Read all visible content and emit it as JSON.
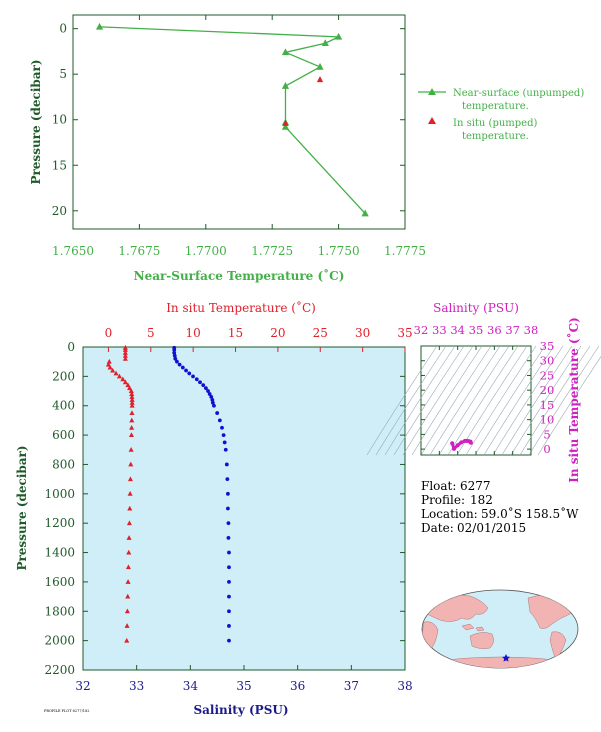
{
  "colors": {
    "green": "#43b047",
    "axis_green": "#1f5a2a",
    "red": "#e0202a",
    "blue": "#1010d0",
    "navy": "#1a1a8c",
    "magenta": "#d020c0",
    "panel_bg": "#cfeef8",
    "land": "#f2b3b3",
    "ocean": "#cfeef8"
  },
  "chart_data": [
    {
      "id": "near_surface",
      "type": "line",
      "xlabel": "Near-Surface Temperature (˚C)",
      "ylabel": "Pressure (decibar)",
      "xlim": [
        1.765,
        1.7775
      ],
      "ylim": [
        22,
        -1.5
      ],
      "x_ticks": [
        "1.7650",
        "1.7675",
        "1.7700",
        "1.7725",
        "1.7750",
        "1.7775"
      ],
      "y_ticks": [
        "0",
        "5",
        "10",
        "15",
        "20"
      ],
      "series": [
        {
          "name": "Near-surface (unpumped) temperature.",
          "marker": "triangle",
          "x": [
            1.766,
            1.775,
            1.7745,
            1.773,
            1.7743,
            1.773,
            1.773,
            1.773,
            1.776
          ],
          "y": [
            -0.2,
            0.9,
            1.6,
            2.6,
            4.2,
            6.3,
            10.3,
            10.8,
            20.3
          ]
        },
        {
          "name": "In situ (pumped) temperature.",
          "marker": "triangle",
          "x": [
            1.7743,
            1.773
          ],
          "y": [
            5.6,
            10.4
          ]
        }
      ],
      "legend": [
        {
          "line1": "Near-surface (unpumped)",
          "line2": "temperature."
        },
        {
          "line1": "In situ (pumped)",
          "line2": "temperature."
        }
      ]
    },
    {
      "id": "profile",
      "type": "scatter",
      "title": "In situ Temperature (˚C)",
      "xlabel": "Salinity (PSU)",
      "ylabel": "Pressure (decibar)",
      "temp_lim": [
        -3,
        35
      ],
      "salinity_lim": [
        32,
        38
      ],
      "pressure_lim": [
        0,
        2200
      ],
      "temp_ticks": [
        "0",
        "5",
        "10",
        "15",
        "20",
        "25",
        "30",
        "35"
      ],
      "salinity_ticks": [
        "32",
        "33",
        "34",
        "35",
        "36",
        "37",
        "38"
      ],
      "pressure_ticks": [
        "0",
        "200",
        "400",
        "600",
        "800",
        "1000",
        "1200",
        "1400",
        "1600",
        "1800",
        "2000",
        "2200"
      ],
      "series": [
        {
          "name": "temperature",
          "pressure": [
            5,
            20,
            40,
            60,
            80,
            100,
            120,
            140,
            160,
            180,
            200,
            220,
            240,
            260,
            280,
            300,
            320,
            340,
            360,
            380,
            400,
            450,
            500,
            550,
            600,
            700,
            800,
            900,
            1000,
            1100,
            1200,
            1300,
            1400,
            1500,
            1600,
            1700,
            1800,
            1900,
            2000
          ],
          "values": [
            2.0,
            2.0,
            2.0,
            2.0,
            2.0,
            0.1,
            0.0,
            0.2,
            0.5,
            0.9,
            1.3,
            1.7,
            2.0,
            2.3,
            2.5,
            2.7,
            2.75,
            2.78,
            2.8,
            2.8,
            2.8,
            2.78,
            2.76,
            2.74,
            2.72,
            2.68,
            2.64,
            2.6,
            2.56,
            2.52,
            2.48,
            2.44,
            2.4,
            2.36,
            2.32,
            2.28,
            2.24,
            2.2,
            2.16
          ]
        },
        {
          "name": "salinity",
          "pressure": [
            5,
            20,
            40,
            60,
            80,
            100,
            120,
            140,
            160,
            180,
            200,
            220,
            240,
            260,
            280,
            300,
            320,
            340,
            360,
            380,
            400,
            450,
            500,
            550,
            600,
            650,
            700,
            800,
            900,
            1000,
            1100,
            1200,
            1300,
            1400,
            1500,
            1600,
            1700,
            1800,
            1900,
            2000
          ],
          "values": [
            33.7,
            33.7,
            33.7,
            33.71,
            33.72,
            33.75,
            33.8,
            33.86,
            33.92,
            33.98,
            34.05,
            34.12,
            34.18,
            34.24,
            34.29,
            34.33,
            34.36,
            34.39,
            34.41,
            34.42,
            34.44,
            34.5,
            34.55,
            34.59,
            34.62,
            34.64,
            34.66,
            34.68,
            34.69,
            34.7,
            34.7,
            34.71,
            34.71,
            34.72,
            34.72,
            34.72,
            34.72,
            34.72,
            34.72,
            34.72
          ]
        }
      ]
    },
    {
      "id": "ts_diagram",
      "type": "scatter",
      "title": "Salinity (PSU)",
      "ylabel": "In situ Temperature (˚C)",
      "xlim": [
        32,
        38
      ],
      "ylim": [
        -2,
        35
      ],
      "x_ticks": [
        "32",
        "33",
        "34",
        "35",
        "36",
        "37",
        "38"
      ],
      "y_ticks": [
        "0",
        "5",
        "10",
        "15",
        "20",
        "25",
        "30",
        "35"
      ],
      "x": [
        33.7,
        33.8,
        34.0,
        34.2,
        34.4,
        34.5,
        34.6,
        34.7,
        34.72
      ],
      "y": [
        2.0,
        0.1,
        1.3,
        2.3,
        2.8,
        2.78,
        2.72,
        2.56,
        2.16
      ]
    }
  ],
  "info": {
    "float_label": "Float:",
    "float_value": "6277",
    "profile_label": "Profile:",
    "profile_value": "182",
    "location_label": "Location:",
    "location_value": "59.0˚S  158.5˚W",
    "date_label": "Date:",
    "date_value": "02/01/2015"
  },
  "map": {
    "icon": "world-map",
    "marker": "blue-star"
  },
  "footer_tag": "PROFILE PLOT 6277/182"
}
